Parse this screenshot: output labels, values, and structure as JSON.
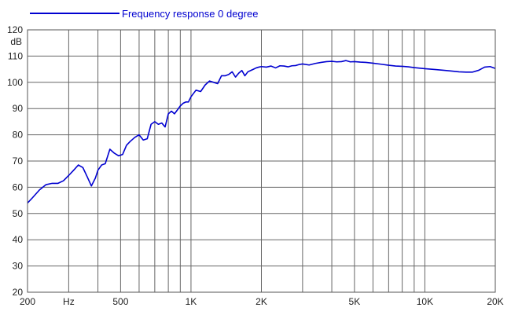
{
  "chart_data": {
    "type": "line",
    "title": "",
    "xlabel": "",
    "ylabel": "dB",
    "x_scale": "log",
    "xlim": [
      200,
      20000
    ],
    "ylim": [
      20,
      120
    ],
    "grid": true,
    "legend_position": "top-left",
    "y_ticks": [
      20,
      30,
      40,
      50,
      60,
      70,
      80,
      90,
      100,
      110,
      120
    ],
    "x_gridlines": [
      200,
      300,
      400,
      500,
      600,
      700,
      800,
      900,
      1000,
      2000,
      3000,
      4000,
      5000,
      6000,
      7000,
      8000,
      9000,
      10000,
      20000
    ],
    "x_tick_labels": [
      {
        "value": 200,
        "label": "200"
      },
      {
        "value": 300,
        "label": "Hz"
      },
      {
        "value": 500,
        "label": "500"
      },
      {
        "value": 1000,
        "label": "1K"
      },
      {
        "value": 2000,
        "label": "2K"
      },
      {
        "value": 5000,
        "label": "5K"
      },
      {
        "value": 10000,
        "label": "10K"
      },
      {
        "value": 20000,
        "label": "20K"
      }
    ],
    "series": [
      {
        "name": "Frequency response 0 degree",
        "color": "#0000d0",
        "x": [
          200,
          210,
          225,
          240,
          255,
          270,
          285,
          300,
          315,
          330,
          345,
          360,
          375,
          390,
          400,
          415,
          430,
          450,
          470,
          490,
          510,
          530,
          550,
          575,
          600,
          625,
          650,
          675,
          700,
          725,
          750,
          775,
          800,
          825,
          850,
          875,
          900,
          925,
          950,
          975,
          1000,
          1050,
          1100,
          1150,
          1200,
          1250,
          1300,
          1350,
          1400,
          1450,
          1500,
          1550,
          1600,
          1650,
          1700,
          1750,
          1800,
          1850,
          1900,
          1950,
          2000,
          2100,
          2200,
          2300,
          2400,
          2500,
          2600,
          2700,
          2800,
          2900,
          3000,
          3200,
          3400,
          3600,
          3800,
          4000,
          4200,
          4400,
          4600,
          4800,
          5000,
          5300,
          5600,
          6000,
          6500,
          7000,
          7500,
          8000,
          8500,
          9000,
          10000,
          11000,
          12000,
          13000,
          14000,
          15000,
          16000,
          17000,
          18000,
          19000,
          20000
        ],
        "y": [
          54,
          56,
          59,
          61,
          61.5,
          61.5,
          62.5,
          64.5,
          66.5,
          68.5,
          67.5,
          64,
          60.5,
          63.5,
          66.5,
          68.5,
          69,
          74.5,
          73,
          72,
          72.5,
          76,
          77.5,
          79,
          80,
          78,
          78.5,
          84,
          85,
          84,
          84.5,
          83,
          88,
          89,
          88,
          89.5,
          91,
          92,
          92.5,
          92.5,
          94.5,
          97,
          96.5,
          99,
          100.5,
          100,
          99.5,
          102.5,
          102.5,
          103,
          104,
          102,
          103.5,
          104.5,
          102.5,
          104,
          104.5,
          105,
          105.5,
          105.8,
          106,
          105.8,
          106.2,
          105.5,
          106.3,
          106.2,
          105.9,
          106.3,
          106.4,
          106.8,
          107,
          106.6,
          107.2,
          107.6,
          107.9,
          108,
          107.8,
          107.9,
          108.3,
          107.8,
          107.9,
          107.7,
          107.6,
          107.3,
          106.9,
          106.5,
          106.2,
          106.1,
          105.9,
          105.6,
          105.2,
          104.9,
          104.6,
          104.3,
          104,
          103.9,
          103.9,
          104.6,
          105.8,
          106,
          105.3
        ]
      }
    ]
  }
}
